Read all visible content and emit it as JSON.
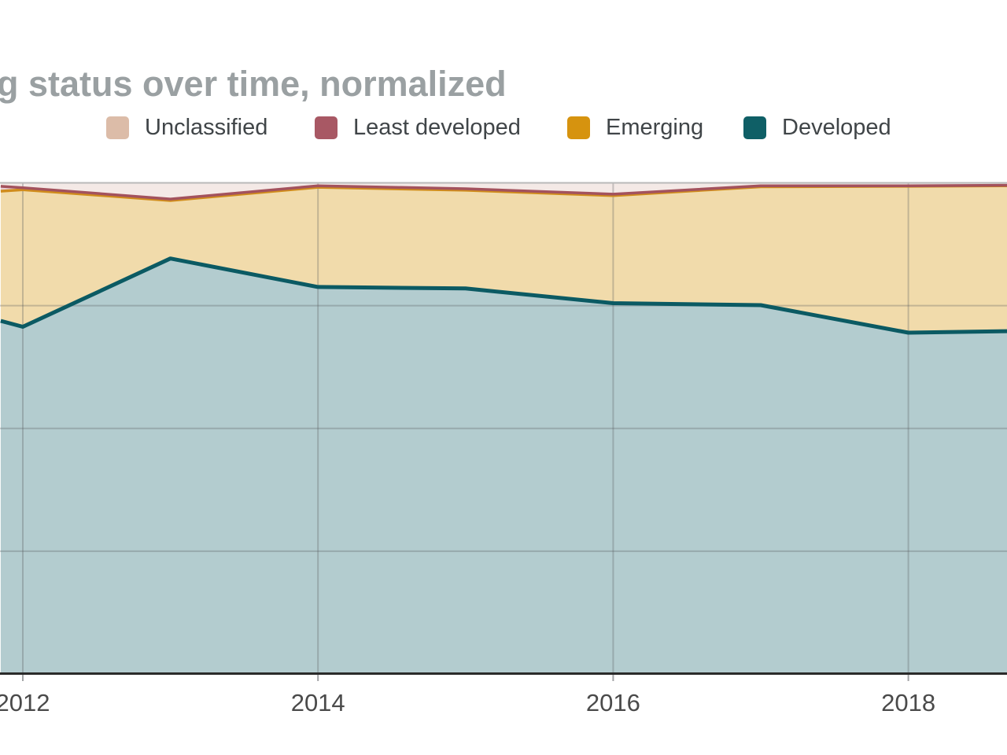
{
  "title": "g status over time, normalized",
  "legend": {
    "items": [
      {
        "label": "Unclassified",
        "color": "#dcbca8"
      },
      {
        "label": "Least developed",
        "color": "#a85864"
      },
      {
        "label": "Emerging",
        "color": "#d6930f"
      },
      {
        "label": "Developed",
        "color": "#0f5f66"
      }
    ]
  },
  "x_axis": {
    "tick_labels": [
      "2012",
      "2014",
      "2016",
      "2018"
    ]
  },
  "chart_data": {
    "type": "area",
    "stacked": true,
    "normalized": true,
    "title": "g status over time, normalized",
    "xlabel": "",
    "ylabel": "",
    "ylim": [
      0,
      100
    ],
    "x_tick_years": [
      2012,
      2014,
      2016,
      2018
    ],
    "x": [
      2011.85,
      2012,
      2013,
      2014,
      2015,
      2016,
      2017,
      2018,
      2018.68
    ],
    "series": [
      {
        "name": "Developed",
        "line_color": "#0b5a63",
        "fill_color": "#b3cccf",
        "line_width": 5,
        "values": [
          71.9,
          70.7,
          84.6,
          78.8,
          78.5,
          75.5,
          75.1,
          69.5,
          69.8
        ]
      },
      {
        "name": "Emerging",
        "line_color": "#d08c1c",
        "fill_color": "#f1dbab",
        "line_width": 3.5,
        "values": [
          26.4,
          27.9,
          11.8,
          20.3,
          20.0,
          21.9,
          24.1,
          29.8,
          29.6
        ]
      },
      {
        "name": "Least developed",
        "line_color": "#a3525d",
        "fill_color": "#e7cdd1",
        "line_width": 3.5,
        "values": [
          1.0,
          0.4,
          0.3,
          0.3,
          0.3,
          0.3,
          0.2,
          0.1,
          0.1
        ]
      },
      {
        "name": "Unclassified",
        "line_color": "none",
        "fill_color": "#f4e9e6",
        "line_width": 0,
        "values": [
          0.7,
          1.0,
          3.3,
          0.6,
          1.2,
          2.3,
          0.6,
          0.6,
          0.5
        ]
      }
    ],
    "grid": {
      "h_pcts": [
        25,
        50,
        75
      ],
      "v_years": [
        2012,
        2014,
        2016,
        2018
      ]
    },
    "legend_position": "top"
  },
  "colors": {
    "background": "#ffffff",
    "title_text": "#9aa0a2",
    "legend_text": "#404548",
    "axis_label_text": "#4a4a4a",
    "axis_line": "#2a2a2a",
    "plot_top_border": "#b9b9b9",
    "gridline": "rgba(85,90,92,0.30)",
    "tick": "rgba(85,90,92,0.55)"
  }
}
